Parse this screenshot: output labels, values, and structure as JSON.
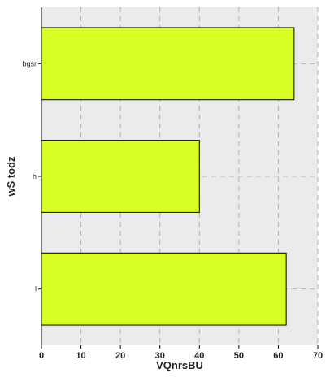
{
  "chart_data": {
    "type": "bar",
    "orientation": "horizontal",
    "categories": [
      "bgsr",
      "h",
      "l"
    ],
    "values": [
      64,
      40,
      62
    ],
    "xlabel": "VQnrsBU",
    "ylabel": "wS todz",
    "xlim": [
      0,
      70
    ],
    "xticks": [
      "0",
      "10",
      "20",
      "30",
      "40",
      "50",
      "60",
      "70"
    ],
    "grid": true,
    "colors": {
      "bar_fill": "#d8ff24",
      "bar_edge": "#000000",
      "plot_background": "#ebebeb",
      "grid": "#b0b0b0"
    }
  }
}
